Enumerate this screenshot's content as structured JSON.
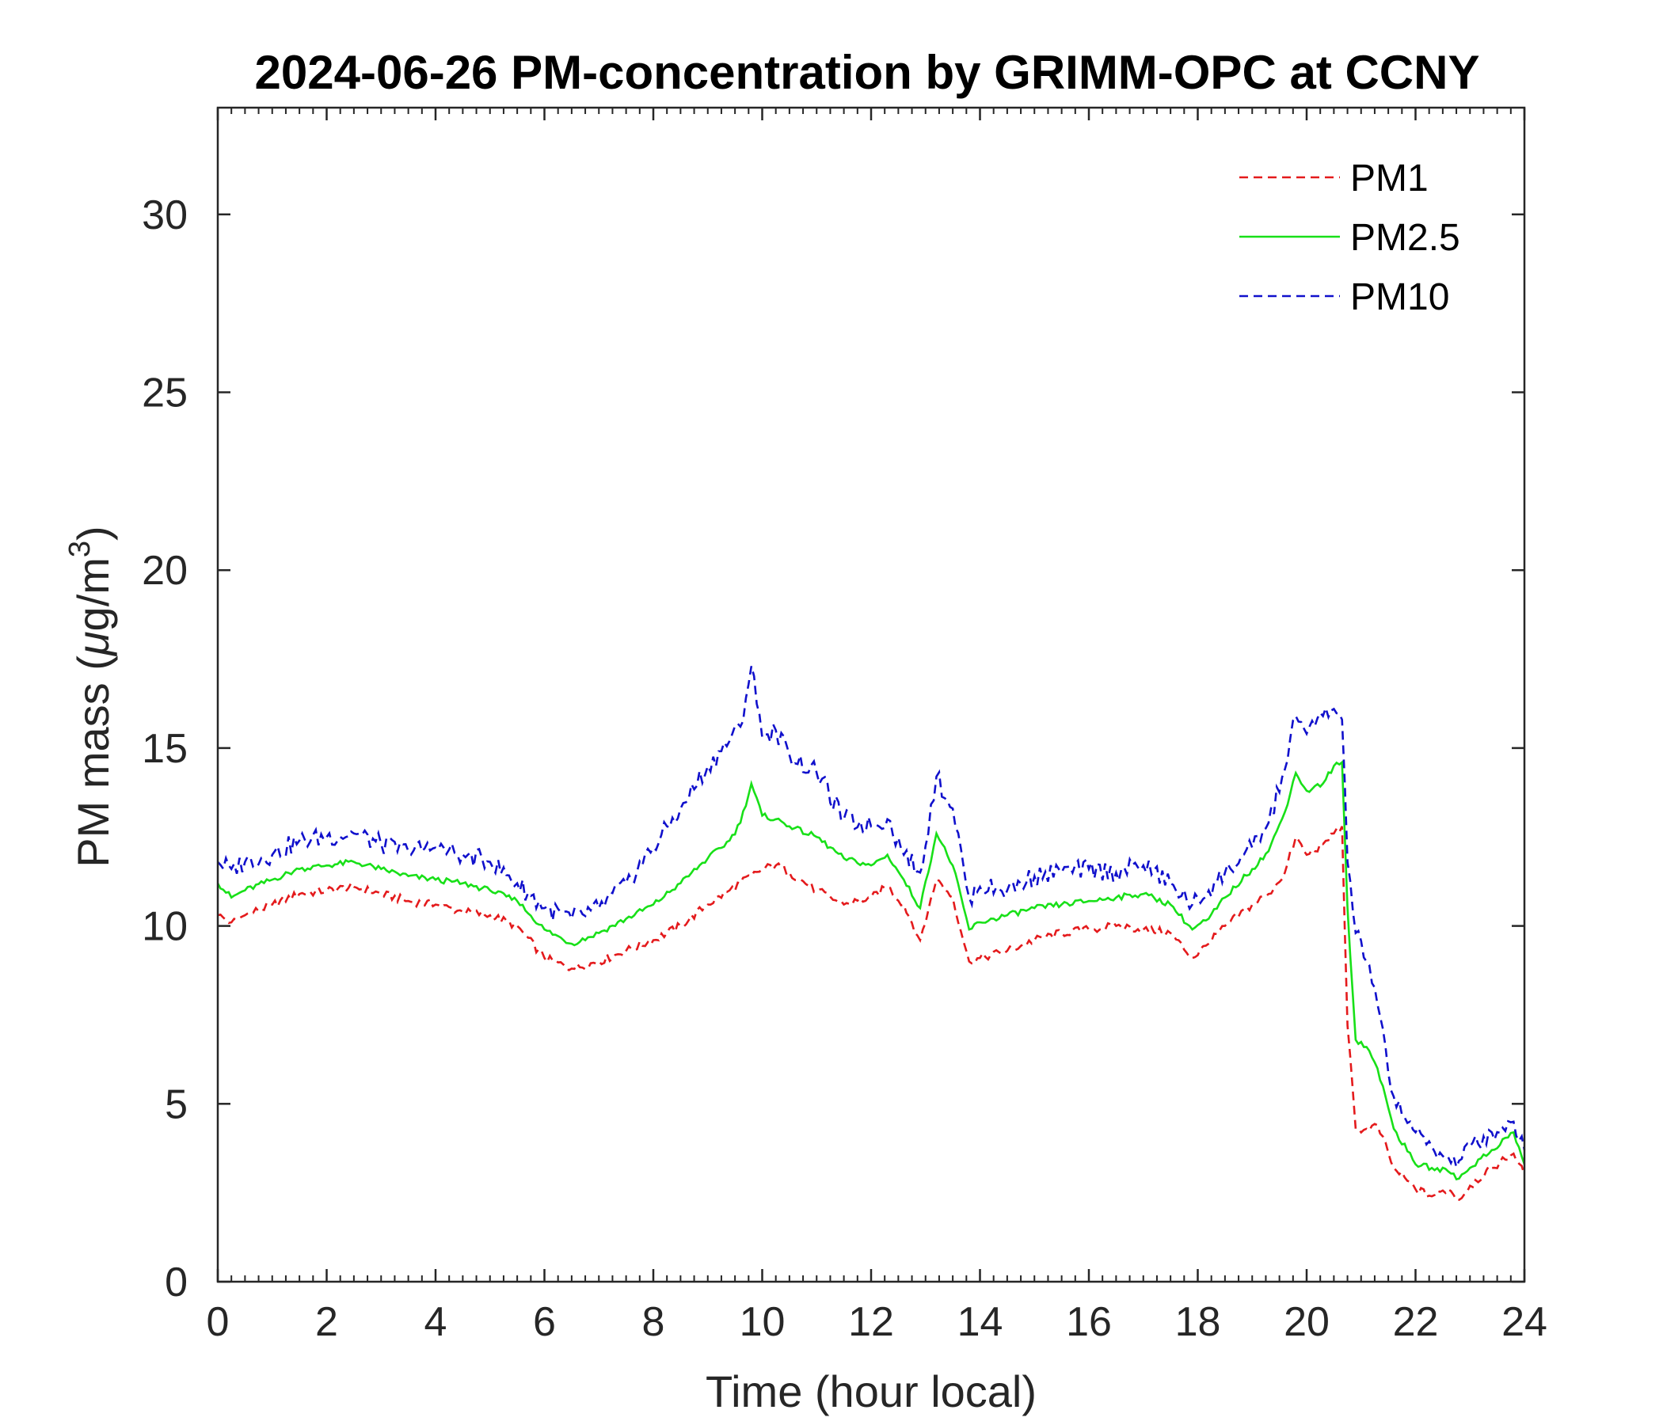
{
  "chart_data": {
    "type": "line",
    "title": "2024-06-26 PM-concentration by GRIMM-OPC at CCNY",
    "xlabel": "Time (hour local)",
    "ylabel_prefix": "PM mass (",
    "ylabel_mu": "μ",
    "ylabel_unit": "g/m",
    "ylabel_sup": "3",
    "ylabel_suffix": ")",
    "xlim": [
      0,
      24
    ],
    "ylim": [
      0,
      33
    ],
    "xticks": [
      0,
      2,
      4,
      6,
      8,
      10,
      12,
      14,
      16,
      18,
      20,
      22,
      24
    ],
    "xtick_labels": [
      "0",
      "2",
      "4",
      "6",
      "8",
      "10",
      "12",
      "14",
      "16",
      "18",
      "20",
      "22",
      "24"
    ],
    "yticks": [
      0,
      5,
      10,
      15,
      20,
      25,
      30
    ],
    "ytick_labels": [
      "0",
      "5",
      "10",
      "15",
      "20",
      "25",
      "30"
    ],
    "legend_position": "top-right",
    "x": [
      0,
      0.25,
      0.5,
      1,
      1.5,
      2,
      2.5,
      3,
      3.5,
      4,
      4.5,
      5,
      5.5,
      6,
      6.5,
      7,
      7.5,
      8,
      8.5,
      9,
      9.4,
      9.6,
      9.8,
      10,
      10.25,
      10.5,
      11,
      11.5,
      12,
      12.3,
      12.6,
      12.9,
      13.2,
      13.5,
      13.8,
      14,
      14.5,
      15,
      15.5,
      16,
      16.5,
      17,
      17.5,
      17.9,
      18.2,
      18.5,
      19,
      19.3,
      19.6,
      19.8,
      20,
      20.3,
      20.5,
      20.65,
      20.75,
      20.9,
      21.1,
      21.3,
      21.6,
      22,
      22.3,
      22.6,
      22.8,
      23,
      23.4,
      23.8,
      24
    ],
    "series": [
      {
        "name": "PM1",
        "color": "#e41a1c",
        "dash": "dashed",
        "values": [
          10.3,
          10.1,
          10.3,
          10.6,
          10.9,
          11.0,
          11.1,
          10.9,
          10.7,
          10.6,
          10.4,
          10.3,
          10.0,
          9.1,
          8.8,
          9.0,
          9.3,
          9.6,
          10.0,
          10.6,
          11.0,
          11.2,
          11.4,
          11.6,
          11.7,
          11.5,
          11.0,
          10.6,
          10.8,
          11.1,
          10.6,
          9.6,
          11.3,
          10.8,
          9.0,
          9.1,
          9.3,
          9.6,
          9.8,
          9.9,
          10.0,
          9.9,
          9.8,
          9.1,
          9.5,
          10.0,
          10.6,
          10.9,
          11.5,
          12.5,
          12.0,
          12.3,
          12.6,
          12.8,
          7.2,
          4.3,
          4.3,
          4.4,
          3.2,
          2.6,
          2.4,
          2.6,
          2.3,
          2.7,
          3.2,
          3.6,
          3.0
        ]
      },
      {
        "name": "PM2.5",
        "color": "#18e018",
        "dash": "solid",
        "values": [
          11.2,
          10.8,
          11.0,
          11.3,
          11.6,
          11.7,
          11.8,
          11.6,
          11.4,
          11.3,
          11.2,
          11.0,
          10.7,
          9.9,
          9.5,
          9.8,
          10.2,
          10.6,
          11.2,
          11.9,
          12.4,
          12.9,
          14.0,
          13.1,
          13.0,
          12.8,
          12.5,
          11.9,
          11.7,
          12.0,
          11.3,
          10.5,
          12.6,
          11.7,
          9.9,
          10.1,
          10.3,
          10.5,
          10.6,
          10.7,
          10.8,
          10.9,
          10.6,
          9.9,
          10.2,
          10.8,
          11.6,
          12.1,
          13.2,
          14.3,
          13.8,
          14.0,
          14.5,
          14.6,
          10.5,
          6.8,
          6.6,
          6.0,
          4.3,
          3.3,
          3.2,
          3.1,
          2.9,
          3.2,
          3.7,
          4.2,
          3.3
        ]
      },
      {
        "name": "PM10",
        "color": "#1010cc",
        "dash": "dashed",
        "values": [
          11.8,
          11.6,
          11.8,
          12.0,
          12.4,
          12.5,
          12.6,
          12.3,
          12.1,
          12.2,
          12.0,
          11.8,
          11.2,
          10.5,
          10.2,
          10.5,
          11.2,
          12.2,
          13.3,
          14.5,
          15.2,
          15.6,
          17.3,
          15.3,
          15.5,
          14.8,
          14.3,
          13.0,
          12.8,
          13.0,
          12.0,
          11.5,
          14.2,
          13.3,
          10.8,
          11.1,
          11.0,
          11.4,
          11.5,
          11.6,
          11.5,
          11.7,
          11.2,
          10.6,
          11.0,
          11.5,
          12.2,
          12.9,
          14.4,
          15.9,
          15.4,
          15.9,
          16.1,
          15.8,
          11.8,
          9.8,
          9.0,
          7.8,
          5.2,
          4.2,
          3.8,
          3.5,
          3.4,
          3.8,
          4.2,
          4.5,
          3.7
        ]
      }
    ]
  }
}
